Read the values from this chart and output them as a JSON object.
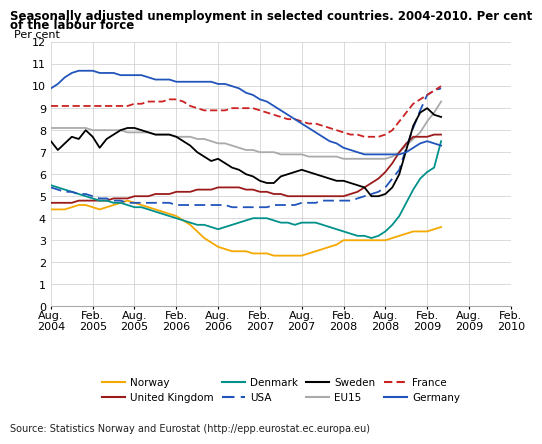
{
  "title1": "Seasonally adjusted unemployment in selected countries. 2004-2010. Per cent",
  "title2": "of the labour force",
  "ylabel": "Per cent",
  "source": "Source: Statistics Norway and Eurostat (http://epp.eurostat.ec.europa.eu)",
  "ylim": [
    0,
    12
  ],
  "yticks": [
    0,
    1,
    2,
    3,
    4,
    5,
    6,
    7,
    8,
    9,
    10,
    11,
    12
  ],
  "xtick_labels": [
    "Aug.\n2004",
    "Feb.\n2005",
    "Aug.\n2005",
    "Feb.\n2006",
    "Aug.\n2006",
    "Feb.\n2007",
    "Aug.\n2007",
    "Feb.\n2008",
    "Aug.\n2008",
    "Feb.\n2009",
    "Aug.\n2009",
    "Feb.\n2010"
  ],
  "xtick_positions": [
    0,
    6,
    12,
    18,
    24,
    30,
    36,
    42,
    48,
    54,
    60,
    66
  ],
  "norway": [
    4.4,
    4.4,
    4.4,
    4.5,
    4.6,
    4.6,
    4.5,
    4.4,
    4.5,
    4.6,
    4.7,
    4.8,
    4.7,
    4.6,
    4.5,
    4.4,
    4.3,
    4.2,
    4.1,
    3.9,
    3.7,
    3.4,
    3.1,
    2.9,
    2.7,
    2.6,
    2.5,
    2.5,
    2.5,
    2.4,
    2.4,
    2.4,
    2.3,
    2.3,
    2.3,
    2.3,
    2.3,
    2.4,
    2.5,
    2.6,
    2.7,
    2.8,
    3.0,
    3.0,
    3.0,
    3.0,
    3.0,
    3.0,
    3.0,
    3.1,
    3.2,
    3.3,
    3.4,
    3.4,
    3.4,
    3.5,
    3.6
  ],
  "uk": [
    4.7,
    4.7,
    4.7,
    4.7,
    4.8,
    4.8,
    4.8,
    4.8,
    4.8,
    4.9,
    4.9,
    4.9,
    5.0,
    5.0,
    5.0,
    5.1,
    5.1,
    5.1,
    5.2,
    5.2,
    5.2,
    5.3,
    5.3,
    5.3,
    5.4,
    5.4,
    5.4,
    5.4,
    5.3,
    5.3,
    5.2,
    5.2,
    5.1,
    5.1,
    5.0,
    5.0,
    5.0,
    5.0,
    5.0,
    5.0,
    5.0,
    5.0,
    5.0,
    5.1,
    5.2,
    5.4,
    5.6,
    5.8,
    6.1,
    6.5,
    7.0,
    7.4,
    7.7,
    7.7,
    7.7,
    7.8,
    7.8
  ],
  "denmark": [
    5.5,
    5.4,
    5.3,
    5.2,
    5.1,
    5.0,
    4.9,
    4.8,
    4.8,
    4.7,
    4.7,
    4.6,
    4.5,
    4.5,
    4.4,
    4.3,
    4.2,
    4.1,
    4.0,
    3.9,
    3.8,
    3.7,
    3.7,
    3.6,
    3.5,
    3.6,
    3.7,
    3.8,
    3.9,
    4.0,
    4.0,
    4.0,
    3.9,
    3.8,
    3.8,
    3.7,
    3.8,
    3.8,
    3.8,
    3.7,
    3.6,
    3.5,
    3.4,
    3.3,
    3.2,
    3.2,
    3.1,
    3.2,
    3.4,
    3.7,
    4.1,
    4.7,
    5.3,
    5.8,
    6.1,
    6.3,
    7.5
  ],
  "usa": [
    5.4,
    5.3,
    5.2,
    5.2,
    5.1,
    5.1,
    5.0,
    4.9,
    4.9,
    4.8,
    4.8,
    4.7,
    4.7,
    4.7,
    4.7,
    4.7,
    4.7,
    4.7,
    4.6,
    4.6,
    4.6,
    4.6,
    4.6,
    4.6,
    4.6,
    4.6,
    4.5,
    4.5,
    4.5,
    4.5,
    4.5,
    4.5,
    4.6,
    4.6,
    4.6,
    4.6,
    4.7,
    4.7,
    4.7,
    4.8,
    4.8,
    4.8,
    4.8,
    4.8,
    4.9,
    5.0,
    5.1,
    5.2,
    5.4,
    5.8,
    6.2,
    7.2,
    8.1,
    8.9,
    9.6,
    9.8,
    9.9
  ],
  "france": [
    9.1,
    9.1,
    9.1,
    9.1,
    9.1,
    9.1,
    9.1,
    9.1,
    9.1,
    9.1,
    9.1,
    9.1,
    9.2,
    9.2,
    9.3,
    9.3,
    9.3,
    9.4,
    9.4,
    9.3,
    9.1,
    9.0,
    8.9,
    8.9,
    8.9,
    8.9,
    9.0,
    9.0,
    9.0,
    9.0,
    8.9,
    8.8,
    8.7,
    8.6,
    8.5,
    8.5,
    8.4,
    8.3,
    8.3,
    8.2,
    8.1,
    8.0,
    7.9,
    7.8,
    7.8,
    7.7,
    7.7,
    7.7,
    7.8,
    8.0,
    8.4,
    8.8,
    9.2,
    9.4,
    9.6,
    9.8,
    10.0
  ],
  "eu15": [
    8.1,
    8.1,
    8.1,
    8.1,
    8.1,
    8.1,
    8.0,
    8.0,
    8.0,
    8.0,
    8.0,
    7.9,
    7.9,
    7.9,
    7.9,
    7.8,
    7.8,
    7.8,
    7.7,
    7.7,
    7.7,
    7.6,
    7.6,
    7.5,
    7.4,
    7.4,
    7.3,
    7.2,
    7.1,
    7.1,
    7.0,
    7.0,
    7.0,
    6.9,
    6.9,
    6.9,
    6.9,
    6.8,
    6.8,
    6.8,
    6.8,
    6.8,
    6.7,
    6.7,
    6.7,
    6.7,
    6.7,
    6.7,
    6.7,
    6.8,
    7.0,
    7.3,
    7.6,
    7.9,
    8.4,
    8.8,
    9.3
  ],
  "sweden": [
    7.5,
    7.1,
    7.4,
    7.7,
    7.6,
    8.0,
    7.7,
    7.2,
    7.6,
    7.8,
    8.0,
    8.1,
    8.1,
    8.0,
    7.9,
    7.8,
    7.8,
    7.8,
    7.7,
    7.5,
    7.3,
    7.0,
    6.8,
    6.6,
    6.7,
    6.5,
    6.3,
    6.2,
    6.0,
    5.9,
    5.7,
    5.6,
    5.6,
    5.9,
    6.0,
    6.1,
    6.2,
    6.1,
    6.0,
    5.9,
    5.8,
    5.7,
    5.7,
    5.6,
    5.5,
    5.4,
    5.0,
    5.0,
    5.1,
    5.4,
    6.0,
    7.1,
    8.2,
    8.8,
    9.0,
    8.7,
    8.6
  ],
  "germany": [
    9.9,
    10.1,
    10.4,
    10.6,
    10.7,
    10.7,
    10.7,
    10.6,
    10.6,
    10.6,
    10.5,
    10.5,
    10.5,
    10.5,
    10.4,
    10.3,
    10.3,
    10.3,
    10.2,
    10.2,
    10.2,
    10.2,
    10.2,
    10.2,
    10.1,
    10.1,
    10.0,
    9.9,
    9.7,
    9.6,
    9.4,
    9.3,
    9.1,
    8.9,
    8.7,
    8.5,
    8.3,
    8.1,
    7.9,
    7.7,
    7.5,
    7.4,
    7.2,
    7.1,
    7.0,
    6.9,
    6.9,
    6.9,
    6.9,
    6.9,
    6.9,
    7.0,
    7.2,
    7.4,
    7.5,
    7.4,
    7.3
  ]
}
